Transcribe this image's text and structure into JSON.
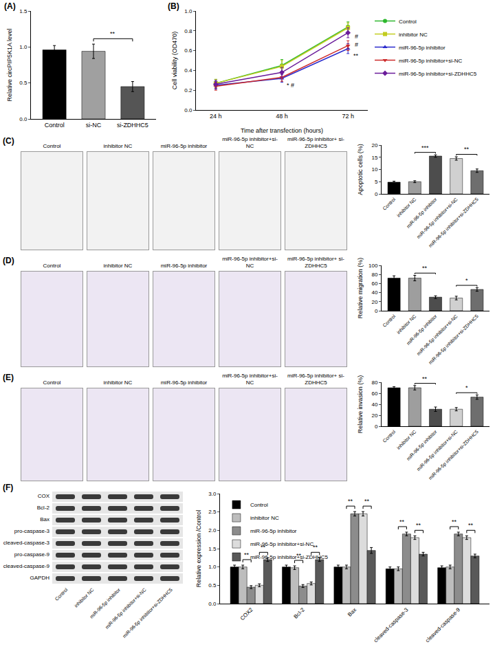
{
  "chart_data": [
    {
      "panel": "(A)",
      "type": "bar",
      "categories": [
        "Control",
        "si-NC",
        "si-ZDHHC5"
      ],
      "values": [
        0.96,
        0.94,
        0.45
      ],
      "errors": [
        0.06,
        0.1,
        0.07
      ],
      "colors": [
        "#000000",
        "#a0a0a0",
        "#555555"
      ],
      "ylabel": "Relative circPIP5K1A level",
      "ylim": [
        0,
        1.5
      ],
      "yticks": [
        {
          "value": 0,
          "label": "0.0"
        },
        0.5,
        {
          "value": 1,
          "label": "1.0"
        },
        1.5
      ],
      "grid": false,
      "significance": [
        {
          "between": [
            1,
            2
          ],
          "text": "**"
        }
      ]
    },
    {
      "panel": "(B)",
      "type": "line",
      "categories": [
        "24 h",
        "48 h",
        "72 h"
      ],
      "xlabel": "Time after transfection (hours)",
      "ylabel": "Cell viability (OD470)",
      "ylim": [
        0,
        1
      ],
      "yticks": [
        {
          "value": 0,
          "label": "0.0"
        },
        0.2,
        0.4,
        0.6,
        0.8,
        {
          "value": 1,
          "label": "1.0"
        }
      ],
      "grid": false,
      "legend": "right",
      "series": [
        {
          "name": "Control",
          "color": "#2eb82e",
          "marker": "circle",
          "values": [
            0.27,
            0.45,
            0.84
          ],
          "errors": [
            0.04,
            0.06,
            0.05
          ]
        },
        {
          "name": "inhibitor NC",
          "color": "#c2cc1f",
          "marker": "square",
          "values": [
            0.27,
            0.44,
            0.83
          ],
          "errors": [
            0.04,
            0.06,
            0.05
          ]
        },
        {
          "name": "miR-96-5p inhibitor",
          "color": "#2a2acc",
          "marker": "triangle-up",
          "values": [
            0.25,
            0.32,
            0.62
          ],
          "errors": [
            0.04,
            0.04,
            0.05
          ]
        },
        {
          "name": "miR-96-5p inhibitor+si-NC",
          "color": "#cc2a2a",
          "marker": "triangle-down",
          "values": [
            0.24,
            0.33,
            0.65
          ],
          "errors": [
            0.04,
            0.04,
            0.05
          ]
        },
        {
          "name": "miR-96-5p inhibitor+si-ZDHHC5",
          "color": "#6a1b9a",
          "marker": "diamond",
          "values": [
            0.26,
            0.38,
            0.78
          ],
          "errors": [
            0.04,
            0.05,
            0.05
          ]
        }
      ],
      "annotations": [
        {
          "category": "48 h",
          "y": 0.25,
          "text": "* #"
        },
        {
          "category": "72 h",
          "y": 0.55,
          "text": "**"
        },
        {
          "category": "72 h",
          "y": 0.66,
          "text": "#"
        },
        {
          "category": "72 h",
          "y": 0.74,
          "text": "#"
        }
      ]
    },
    {
      "panel": "(C)",
      "type": "bar",
      "categories": [
        "Control",
        "inhibitor NC",
        "miR-96-5p inhibitor",
        "miR-96-5p inhibitor+si-NC",
        "miR-96-5p inhibitor+si-ZDHHC5"
      ],
      "values": [
        4.8,
        5.0,
        15.5,
        14.5,
        9.5
      ],
      "errors": [
        0.4,
        0.4,
        0.5,
        0.7,
        0.7
      ],
      "colors": [
        "#000000",
        "#9e9e9e",
        "#4d4d4d",
        "#d0d0d0",
        "#6e6e6e"
      ],
      "ylabel": "Apoptotic cells (%)",
      "ylim": [
        0,
        20
      ],
      "yticks": [
        0,
        5,
        10,
        15,
        20
      ],
      "grid": false,
      "significance": [
        {
          "between": [
            1,
            2
          ],
          "text": "***"
        },
        {
          "between": [
            3,
            4
          ],
          "text": "**"
        }
      ]
    },
    {
      "panel": "(D)",
      "type": "bar",
      "categories": [
        "Control",
        "inhibitor NC",
        "miR-96-5p inhibitor",
        "miR-96-5p inhibitor+si-NC",
        "miR-96-5p inhibitor+si-ZDHHC5"
      ],
      "values": [
        72,
        72,
        30,
        28,
        47
      ],
      "errors": [
        5,
        6,
        3,
        4,
        4
      ],
      "colors": [
        "#000000",
        "#9e9e9e",
        "#4d4d4d",
        "#d0d0d0",
        "#6e6e6e"
      ],
      "ylabel": "Relative migration (%)",
      "ylim": [
        0,
        100
      ],
      "yticks": [
        0,
        20,
        40,
        60,
        80,
        100
      ],
      "grid": false,
      "significance": [
        {
          "between": [
            1,
            2
          ],
          "text": "**"
        },
        {
          "between": [
            3,
            4
          ],
          "text": "*"
        }
      ]
    },
    {
      "panel": "(E)",
      "type": "bar",
      "categories": [
        "Control",
        "inhibitor NC",
        "miR-96-5p inhibitor",
        "miR-96-5p inhibitor+si-NC",
        "miR-96-5p inhibitor+si-ZDHHC5"
      ],
      "values": [
        70,
        70,
        31,
        31,
        53
      ],
      "errors": [
        2,
        4,
        4,
        3,
        4
      ],
      "colors": [
        "#000000",
        "#9e9e9e",
        "#4d4d4d",
        "#d0d0d0",
        "#6e6e6e"
      ],
      "ylabel": "Relative invasion (%)",
      "ylim": [
        0,
        80
      ],
      "yticks": [
        0,
        20,
        40,
        60,
        80
      ],
      "grid": false,
      "significance": [
        {
          "between": [
            1,
            2
          ],
          "text": "**"
        },
        {
          "between": [
            3,
            4
          ],
          "text": "*"
        }
      ]
    },
    {
      "panel": "(F)",
      "type": "bar",
      "categories": [
        "COX2",
        "Bcl-2",
        "Bax",
        "cleaved-caspase-3",
        "cleaved-caspase-9"
      ],
      "ylabel": "Relative expression /Control",
      "ylim": [
        0,
        3
      ],
      "yticks": [
        {
          "value": 0,
          "label": "0.0"
        },
        0.5,
        {
          "value": 1,
          "label": "1.0"
        },
        1.5,
        {
          "value": 2,
          "label": "2.0"
        },
        2.5,
        {
          "value": 3,
          "label": "3.0"
        }
      ],
      "grid": false,
      "legend": "upper left",
      "series": [
        {
          "name": "Control",
          "color": "#000000",
          "values": [
            1.0,
            1.0,
            1.0,
            0.95,
            0.98
          ],
          "errors": [
            0.05,
            0.05,
            0.05,
            0.05,
            0.05
          ]
        },
        {
          "name": "inhibitor NC",
          "color": "#bdbdbd",
          "values": [
            1.0,
            0.98,
            1.0,
            0.95,
            1.0
          ],
          "errors": [
            0.05,
            0.05,
            0.05,
            0.05,
            0.05
          ]
        },
        {
          "name": "miR-96-5p inhibitor",
          "color": "#8c8c8c",
          "values": [
            0.45,
            0.48,
            2.45,
            1.9,
            1.9
          ],
          "errors": [
            0.04,
            0.04,
            0.06,
            0.05,
            0.05
          ]
        },
        {
          "name": "miR-96-5p inhibitor+si-NC",
          "color": "#dcdcdc",
          "values": [
            0.5,
            0.55,
            2.45,
            1.8,
            1.8
          ],
          "errors": [
            0.04,
            0.04,
            0.06,
            0.05,
            0.05
          ]
        },
        {
          "name": "miR-96-5p inhibitor+si-ZDHHC5",
          "color": "#595959",
          "values": [
            1.2,
            1.2,
            1.45,
            1.35,
            1.3
          ],
          "errors": [
            0.05,
            0.05,
            0.08,
            0.05,
            0.05
          ]
        }
      ],
      "significance": [
        {
          "category": "COX2",
          "between": [
            1,
            2
          ],
          "text": "**"
        },
        {
          "category": "COX2",
          "between": [
            3,
            4
          ],
          "text": "**"
        },
        {
          "category": "Bcl-2",
          "between": [
            1,
            2
          ],
          "text": "**"
        },
        {
          "category": "Bcl-2",
          "between": [
            3,
            4
          ],
          "text": "**"
        },
        {
          "category": "Bax",
          "between": [
            1,
            2
          ],
          "text": "**"
        },
        {
          "category": "Bax",
          "between": [
            3,
            4
          ],
          "text": "**"
        },
        {
          "category": "cleaved-caspase-3",
          "between": [
            1,
            2
          ],
          "text": "**"
        },
        {
          "category": "cleaved-caspase-3",
          "between": [
            3,
            4
          ],
          "text": "**"
        },
        {
          "category": "cleaved-caspase-9",
          "between": [
            1,
            2
          ],
          "text": "**"
        },
        {
          "category": "cleaved-caspase-9",
          "between": [
            3,
            4
          ],
          "text": "**"
        }
      ]
    }
  ],
  "image_panels": [
    {
      "labels": [
        "Control",
        "inhibitor NC",
        "miR-96-5p inhibitor",
        "miR-96-5p inhibitor+si-NC",
        "miR-96-5p inhibitor+ si-ZDHHC5"
      ]
    },
    {
      "labels": [
        "Control",
        "inhibitor NC",
        "miR-96-5p inhibitor",
        "miR-96-5p inhibitor+si-NC",
        "miR-96-5p inhibitor+ si-ZDHHC5"
      ]
    },
    {
      "labels": [
        "Control",
        "inhibitor NC",
        "miR-96-5p inhibitor",
        "miR-96-5p inhibitor+si-NC",
        "miR-96-5p inhibitor+ si-ZDHHC5"
      ]
    }
  ],
  "blot": {
    "rows": [
      "COX",
      "Bcl-2",
      "Bax",
      "pro-caspase-3",
      "cleaved-caspase-3",
      "pro-caspase-9",
      "cleaved-caspase-9",
      "GAPDH"
    ],
    "lanes": [
      "Control",
      "inhibitor NC",
      "miR-96-5p inhibitor",
      "miR-96-5p inhibitor+si-NC",
      "miR-96-5p inhibitor+si-ZDHHC5"
    ]
  }
}
